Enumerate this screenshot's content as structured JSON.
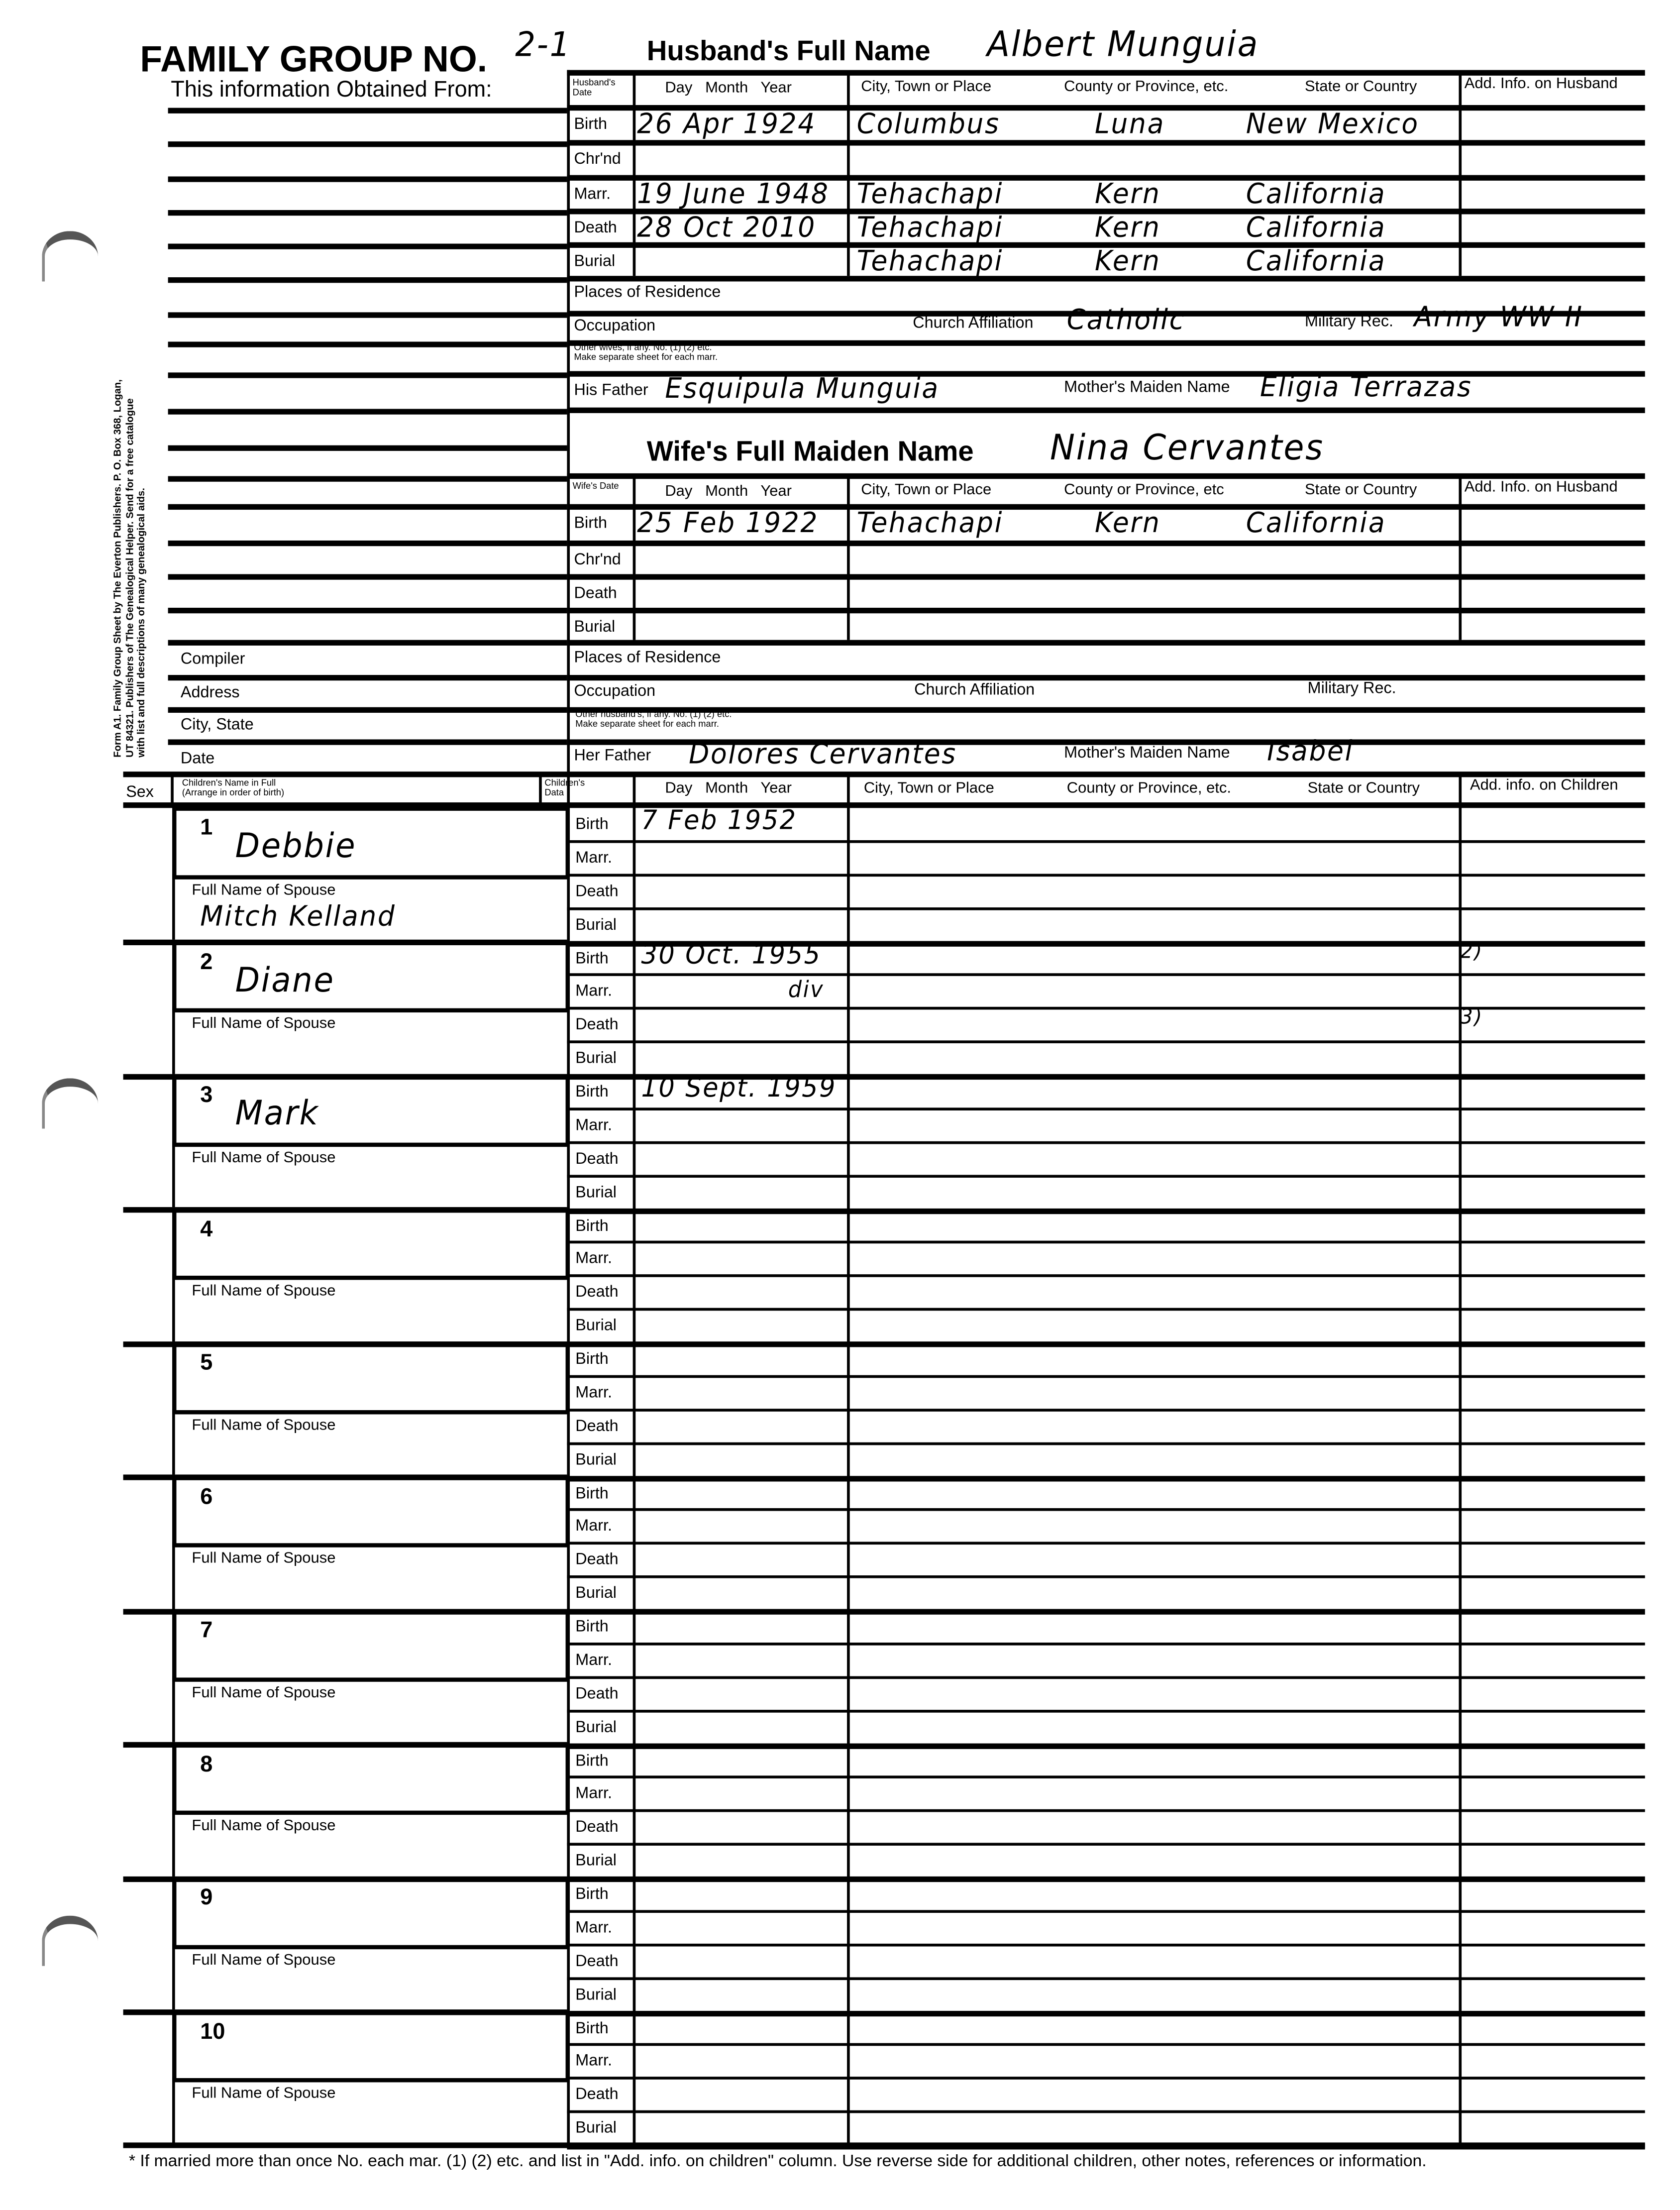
{
  "form": {
    "title": "FAMILY GROUP NO.",
    "group_no": "2-1",
    "husband_label": "Husband's Full Name",
    "husband_name": "Albert Munguia",
    "obtained_from": "This information Obtained From:",
    "publisher_note": "Form A1. Family Group Sheet by The Everton Publishers. P. O. Box 368, Logan, UT 84321. Publishers of The Genealogical Helper. Send for a free catalogue with list and full descriptions of many genealogical aids.",
    "footnote": "* If married more than once No. each mar. (1) (2) etc. and list in \"Add. info. on children\" column. Use reverse side for additional children, other notes, references or information."
  },
  "husband": {
    "date_header": "Husband's Date",
    "date_cols": "Day   Month   Year",
    "col_city": "City, Town or Place",
    "col_county": "County or Province, etc.",
    "col_state": "State or Country",
    "col_add": "Add. Info. on Husband",
    "events": [
      {
        "label": "Birth",
        "date": "26 Apr 1924",
        "city": "Columbus",
        "county": "Luna",
        "state": "New Mexico"
      },
      {
        "label": "Chr'nd",
        "date": "",
        "city": "",
        "county": "",
        "state": ""
      },
      {
        "label": "Marr.",
        "date": "19 June 1948",
        "city": "Tehachapi",
        "county": "Kern",
        "state": "California"
      },
      {
        "label": "Death",
        "date": "28 Oct 2010",
        "city": "Tehachapi",
        "county": "Kern",
        "state": "California"
      },
      {
        "label": "Burial",
        "date": "",
        "city": "Tehachapi",
        "county": "Kern",
        "state": "California"
      }
    ],
    "residence_label": "Places of Residence",
    "occupation_label": "Occupation",
    "church_label": "Church Affiliation",
    "church": "Catholic",
    "military_label": "Military Rec.",
    "military": "Army WW II",
    "other_line1": "Other wives, if any. No. (1) (2) etc.",
    "other_line2": "Make separate sheet for each marr.",
    "father_label": "His Father",
    "father": "Esquipula Munguia",
    "mother_label": "Mother's Maiden Name",
    "mother": "Eligia Terrazas"
  },
  "wife": {
    "name_label": "Wife's Full Maiden Name",
    "name": "Nina Cervantes",
    "date_header": "Wife's Date",
    "date_cols": "Day   Month   Year",
    "col_city": "City, Town or Place",
    "col_county": "County or Province, etc",
    "col_state": "State or Country",
    "col_add": "Add. Info. on Husband",
    "events": [
      {
        "label": "Birth",
        "date": "25 Feb 1922",
        "city": "Tehachapi",
        "county": "Kern",
        "state": "California"
      },
      {
        "label": "Chr'nd",
        "date": "",
        "city": "",
        "county": "",
        "state": ""
      },
      {
        "label": "Death",
        "date": "",
        "city": "",
        "county": "",
        "state": ""
      },
      {
        "label": "Burial",
        "date": "",
        "city": "",
        "county": "",
        "state": ""
      }
    ],
    "residence_label": "Places of Residence",
    "occupation_label": "Occupation",
    "church_label": "Church Affiliation",
    "military_label": "Military Rec.",
    "other_line1": "Other husband's, if any. No. (1) (2) etc.",
    "other_line2": "Make separate sheet for each marr.",
    "father_label": "Her Father",
    "father": "Dolores Cervantes",
    "mother_label": "Mother's Maiden Name",
    "mother": "Isabel"
  },
  "compiler": {
    "labels": [
      "Compiler",
      "Address",
      "City, State",
      "Date"
    ]
  },
  "children_header": {
    "sex": "Sex",
    "name_line1": "Children's Name in Full",
    "name_line2": "(Arrange in order of birth)",
    "data_line1": "Children's",
    "data_line2": "Data",
    "date_cols": "Day   Month   Year",
    "col_city": "City, Town or Place",
    "col_county": "County or Province, etc.",
    "col_state": "State or Country",
    "col_add": "Add. info. on Children",
    "event_labels": [
      "Birth",
      "Marr.",
      "Death",
      "Burial"
    ],
    "spouse_label": "Full Name of Spouse"
  },
  "children": [
    {
      "num": "1",
      "name": "Debbie",
      "spouse": "Mitch Kelland",
      "dates": [
        "7 Feb 1952",
        "",
        "",
        ""
      ],
      "add_info": [
        "",
        "",
        "",
        ""
      ]
    },
    {
      "num": "2",
      "name": "Diane",
      "spouse": "",
      "dates": [
        "30 Oct. 1955",
        "div",
        "",
        ""
      ],
      "add_info": [
        "2)",
        "",
        "3)",
        ""
      ]
    },
    {
      "num": "3",
      "name": "Mark",
      "spouse": "",
      "dates": [
        "10 Sept. 1959",
        "",
        "",
        ""
      ],
      "add_info": [
        "",
        "",
        "",
        ""
      ]
    },
    {
      "num": "4",
      "name": "",
      "spouse": "",
      "dates": [
        "",
        "",
        "",
        ""
      ],
      "add_info": [
        "",
        "",
        "",
        ""
      ]
    },
    {
      "num": "5",
      "name": "",
      "spouse": "",
      "dates": [
        "",
        "",
        "",
        ""
      ],
      "add_info": [
        "",
        "",
        "",
        ""
      ]
    },
    {
      "num": "6",
      "name": "",
      "spouse": "",
      "dates": [
        "",
        "",
        "",
        ""
      ],
      "add_info": [
        "",
        "",
        "",
        ""
      ]
    },
    {
      "num": "7",
      "name": "",
      "spouse": "",
      "dates": [
        "",
        "",
        "",
        ""
      ],
      "add_info": [
        "",
        "",
        "",
        ""
      ]
    },
    {
      "num": "8",
      "name": "",
      "spouse": "",
      "dates": [
        "",
        "",
        "",
        ""
      ],
      "add_info": [
        "",
        "",
        "",
        ""
      ]
    },
    {
      "num": "9",
      "name": "",
      "spouse": "",
      "dates": [
        "",
        "",
        "",
        ""
      ],
      "add_info": [
        "",
        "",
        "",
        ""
      ]
    },
    {
      "num": "10",
      "name": "",
      "spouse": "",
      "dates": [
        "",
        "",
        "",
        ""
      ],
      "add_info": [
        "",
        "",
        "",
        ""
      ]
    }
  ]
}
